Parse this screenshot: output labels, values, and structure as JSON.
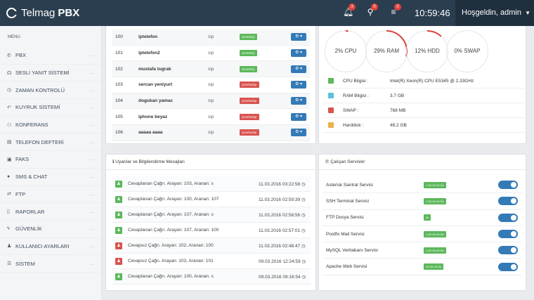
{
  "header": {
    "brand": "Telmag",
    "brand_bold": "PBX",
    "badges": [
      "3",
      "0",
      "0"
    ],
    "clock": "10:59:46",
    "user": "Hoşgeldin, admin"
  },
  "sidebar": {
    "menu_label": "MENU",
    "items": [
      {
        "label": "PBX",
        "icon": "phone-icon",
        "glyph": "✆"
      },
      {
        "label": "SESLİ YANIT SİSTEMİ",
        "icon": "headset-icon",
        "glyph": "☊"
      },
      {
        "label": "ZAMAN KONTROLÜ",
        "icon": "clock-icon",
        "glyph": "◷"
      },
      {
        "label": "KUYRUK SİSTEMİ",
        "icon": "reply-all-icon",
        "glyph": "↶"
      },
      {
        "label": "KONFERANS",
        "icon": "users-icon",
        "glyph": "⚇"
      },
      {
        "label": "TELEFON DEFTERİ",
        "icon": "book-icon",
        "glyph": "▤"
      },
      {
        "label": "FAKS",
        "icon": "fax-icon",
        "glyph": "▣"
      },
      {
        "label": "SMS & CHAT",
        "icon": "chat-icon",
        "glyph": "●"
      },
      {
        "label": "FTP",
        "icon": "exchange-icon",
        "glyph": "⇄"
      },
      {
        "label": "RAPORLAR",
        "icon": "file-icon",
        "glyph": "▯"
      },
      {
        "label": "GÜVENLİK",
        "icon": "bolt-icon",
        "glyph": "ϟ"
      },
      {
        "label": "KULLANICI AYARLARI",
        "icon": "user-icon",
        "glyph": "♟"
      },
      {
        "label": "SİSTEM",
        "icon": "list-icon",
        "glyph": "☰"
      }
    ],
    "dots": "...."
  },
  "extensions": [
    {
      "no": "100",
      "name": "iptelefon",
      "type": "sip",
      "status": "Çevrimiçi",
      "online": true
    },
    {
      "no": "101",
      "name": "iptelefon2",
      "type": "sip",
      "status": "Çevrimiçi",
      "online": true
    },
    {
      "no": "102",
      "name": "mustafa tugrak",
      "type": "sip",
      "status": "Çevrimiçi",
      "online": true
    },
    {
      "no": "103",
      "name": "sercan yeniyurt",
      "type": "sip",
      "status": "Çevrimdışı",
      "online": false
    },
    {
      "no": "104",
      "name": "dogukan yamac",
      "type": "sip",
      "status": "Çevrimdışı",
      "online": false
    },
    {
      "no": "105",
      "name": "iphone beyaz",
      "type": "sip",
      "status": "Çevrimdışı",
      "online": false
    },
    {
      "no": "106",
      "name": "aaaaa aaaa",
      "type": "sip",
      "status": "Çevrimdışı",
      "online": false
    }
  ],
  "gauges": [
    {
      "label": "2% CPU",
      "percent": 2
    },
    {
      "label": "29% RAM",
      "percent": 29
    },
    {
      "label": "12% HDD",
      "percent": 12
    },
    {
      "label": "0% SWAP",
      "percent": 0
    }
  ],
  "sysinfo": [
    {
      "key": "CPU Bilgisi :",
      "value": "Intel(R) Xeon(R) CPU E5345 @ 2.33GHz",
      "color": "#5cb85c"
    },
    {
      "key": "RAM Bilgisi :",
      "value": "3.7 GB",
      "color": "#5bc0de"
    },
    {
      "key": "SWAP :",
      "value": "768 MB",
      "color": "#d9534f"
    },
    {
      "key": "Harddisk :",
      "value": "48.2 GB",
      "color": "#f0ad4e"
    }
  ],
  "messages_panel": {
    "title": "Uyarılar ve Bilgilendirme Mesajları",
    "items": [
      {
        "text": "Cevaplanan Çağrı. Arayan: 103, Aranan: s",
        "date": "11.03.2016 03:22:58",
        "answered": true
      },
      {
        "text": "Cevaplanan Çağrı. Arayan: 100, Aranan: 107",
        "date": "11.03.2016 02:59:39",
        "answered": true
      },
      {
        "text": "Cevaplanan Çağrı. Arayan: 107, Aranan: s",
        "date": "11.03.2016 02:58:56",
        "answered": true
      },
      {
        "text": "Cevaplanan Çağrı. Arayan: 107, Aranan: 100",
        "date": "11.03.2016 02:57:01",
        "answered": true
      },
      {
        "text": "Cevapsız Çağrı. Arayan: 102, Aranan: 100",
        "date": "11.03.2016 02:48:47",
        "answered": false
      },
      {
        "text": "Cevapsız Çağrı. Arayan: 103, Aranan: 101",
        "date": "09.03.2016 12:24:59",
        "answered": false
      },
      {
        "text": "Cevaplanan Çağrı. Arayan: 100, Aranan: s",
        "date": "09.03.2016 09:16:54",
        "answered": true
      }
    ]
  },
  "services_panel": {
    "title": "Çalışan Servisler",
    "items": [
      {
        "name": "Asterisk Santral Servisi",
        "uptime": "1-00 Sa 00 Dk"
      },
      {
        "name": "SSH Terminal Servisi",
        "uptime": "1-00 Sa 00 Dk"
      },
      {
        "name": "FTP Dosya Servisi",
        "uptime": "0k"
      },
      {
        "name": "Postfix Mail Servisi",
        "uptime": "1-00 Sa 00 Dk"
      },
      {
        "name": "MySQL Veritabanı Servisi",
        "uptime": "1-00 Sa 00 Dk"
      },
      {
        "name": "Apache Web Servisi",
        "uptime": "15 Sa 29 Dk"
      }
    ]
  }
}
